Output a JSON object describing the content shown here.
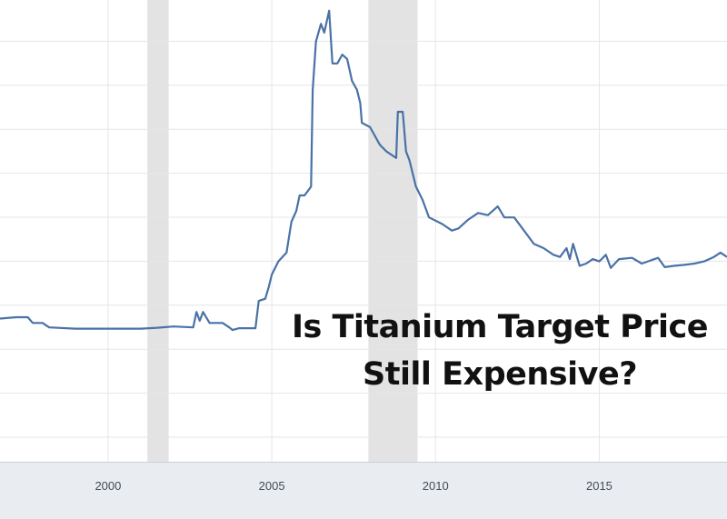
{
  "overlay": {
    "line1": "Is Titanium Target Price",
    "line2": "Still Expensive?"
  },
  "colors": {
    "line": "#4a72a6",
    "recession": "#e3e3e3",
    "grid": "#e6e6e6",
    "axis_band": "#e9edf1"
  },
  "chart_data": {
    "type": "line",
    "title": "",
    "xlabel": "",
    "ylabel": "",
    "xlim": [
      1996.7,
      2018.9
    ],
    "ylim": [
      0,
      100
    ],
    "x_ticks": [
      2000,
      2005,
      2010,
      2015
    ],
    "x_tick_labels": [
      "2000",
      "2005",
      "2010",
      "2015"
    ],
    "grid": true,
    "recession_bands": [
      [
        2001.2,
        2001.85
      ],
      [
        2007.95,
        2009.45
      ]
    ],
    "series": [
      {
        "values": [
          [
            1996.7,
            28.0
          ],
          [
            1997.2,
            28.3
          ],
          [
            1997.55,
            28.3
          ],
          [
            1997.7,
            27.0
          ],
          [
            1998.0,
            27.0
          ],
          [
            1998.2,
            26.0
          ],
          [
            1999.0,
            25.7
          ],
          [
            2000.0,
            25.7
          ],
          [
            2001.0,
            25.7
          ],
          [
            2001.5,
            25.9
          ],
          [
            2002.0,
            26.2
          ],
          [
            2002.6,
            26.0
          ],
          [
            2002.7,
            29.5
          ],
          [
            2002.8,
            27.5
          ],
          [
            2002.9,
            29.5
          ],
          [
            2003.1,
            27.0
          ],
          [
            2003.5,
            27.0
          ],
          [
            2003.7,
            26.0
          ],
          [
            2003.8,
            25.4
          ],
          [
            2004.0,
            25.8
          ],
          [
            2004.5,
            25.8
          ],
          [
            2004.6,
            32.0
          ],
          [
            2004.8,
            32.5
          ],
          [
            2004.9,
            35.0
          ],
          [
            2005.0,
            38.0
          ],
          [
            2005.2,
            41.0
          ],
          [
            2005.45,
            43.0
          ],
          [
            2005.6,
            50.0
          ],
          [
            2005.75,
            52.5
          ],
          [
            2005.85,
            56.0
          ],
          [
            2006.0,
            56.0
          ],
          [
            2006.2,
            58.0
          ],
          [
            2006.25,
            80.0
          ],
          [
            2006.35,
            91.0
          ],
          [
            2006.5,
            95.0
          ],
          [
            2006.6,
            93.0
          ],
          [
            2006.75,
            98.0
          ],
          [
            2006.85,
            86.0
          ],
          [
            2007.0,
            86.0
          ],
          [
            2007.15,
            88.0
          ],
          [
            2007.3,
            87.0
          ],
          [
            2007.45,
            82.0
          ],
          [
            2007.6,
            80.0
          ],
          [
            2007.7,
            77.0
          ],
          [
            2007.75,
            72.5
          ],
          [
            2008.0,
            71.5
          ],
          [
            2008.3,
            67.5
          ],
          [
            2008.5,
            66.0
          ],
          [
            2008.7,
            65.0
          ],
          [
            2008.8,
            64.5
          ],
          [
            2008.85,
            75.0
          ],
          [
            2009.0,
            75.0
          ],
          [
            2009.1,
            66.0
          ],
          [
            2009.2,
            64.0
          ],
          [
            2009.4,
            58.0
          ],
          [
            2009.6,
            55.0
          ],
          [
            2009.8,
            51.0
          ],
          [
            2010.2,
            49.5
          ],
          [
            2010.5,
            48.0
          ],
          [
            2010.7,
            48.5
          ],
          [
            2011.0,
            50.5
          ],
          [
            2011.3,
            52.0
          ],
          [
            2011.6,
            51.5
          ],
          [
            2011.9,
            53.5
          ],
          [
            2012.1,
            51.0
          ],
          [
            2012.4,
            51.0
          ],
          [
            2012.6,
            49.0
          ],
          [
            2013.0,
            45.0
          ],
          [
            2013.3,
            44.0
          ],
          [
            2013.6,
            42.5
          ],
          [
            2013.8,
            42.0
          ],
          [
            2014.0,
            44.0
          ],
          [
            2014.1,
            41.5
          ],
          [
            2014.2,
            45.0
          ],
          [
            2014.4,
            40.0
          ],
          [
            2014.6,
            40.5
          ],
          [
            2014.8,
            41.5
          ],
          [
            2015.0,
            41.0
          ],
          [
            2015.2,
            42.5
          ],
          [
            2015.35,
            39.5
          ],
          [
            2015.6,
            41.5
          ],
          [
            2016.0,
            41.8
          ],
          [
            2016.3,
            40.5
          ],
          [
            2016.6,
            41.3
          ],
          [
            2016.8,
            41.8
          ],
          [
            2017.0,
            39.7
          ],
          [
            2017.3,
            40.0
          ],
          [
            2017.6,
            40.2
          ],
          [
            2017.9,
            40.5
          ],
          [
            2018.2,
            41.0
          ],
          [
            2018.5,
            42.0
          ],
          [
            2018.7,
            43.0
          ],
          [
            2018.9,
            42.0
          ]
        ]
      }
    ]
  }
}
